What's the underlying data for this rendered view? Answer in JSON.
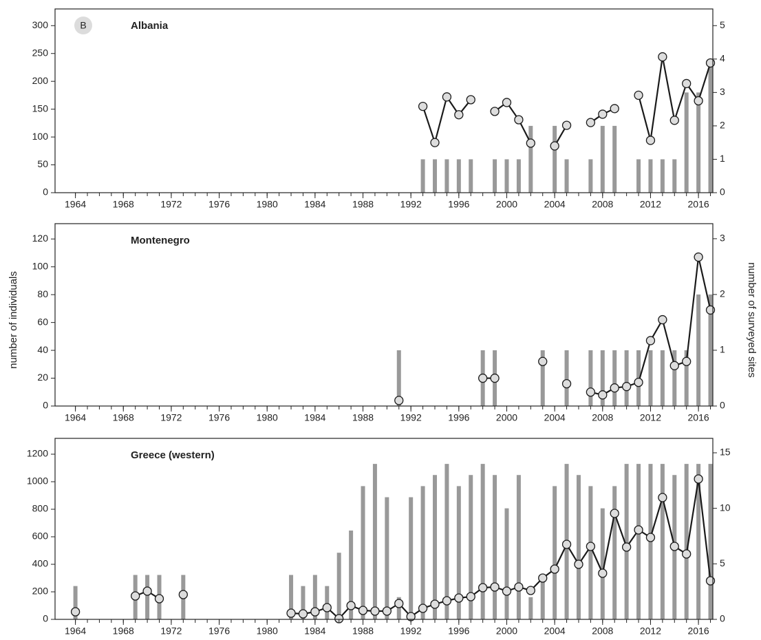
{
  "chart_data": [
    {
      "type": "combo",
      "title": "Albania",
      "panel_label": "B",
      "x": [
        1964,
        1965,
        1966,
        1967,
        1968,
        1969,
        1970,
        1971,
        1972,
        1973,
        1974,
        1975,
        1976,
        1977,
        1978,
        1979,
        1980,
        1981,
        1982,
        1983,
        1984,
        1985,
        1986,
        1987,
        1988,
        1989,
        1990,
        1991,
        1992,
        1993,
        1994,
        1995,
        1996,
        1997,
        1998,
        1999,
        2000,
        2001,
        2002,
        2003,
        2004,
        2005,
        2006,
        2007,
        2008,
        2009,
        2010,
        2011,
        2012,
        2013,
        2014,
        2015,
        2016,
        2017
      ],
      "xlim": [
        1962.3,
        2017.2
      ],
      "xticks": [
        1964,
        1968,
        1972,
        1976,
        1980,
        1984,
        1988,
        1992,
        1996,
        2000,
        2004,
        2008,
        2012,
        2016
      ],
      "ylim": [
        0,
        330
      ],
      "yticks": [
        0,
        50,
        100,
        150,
        200,
        250,
        300
      ],
      "y2lim": [
        0,
        5.5
      ],
      "y2ticks": [
        0,
        1,
        2,
        3,
        4,
        5
      ],
      "series": [
        {
          "type": "bar",
          "axis": "y2",
          "color": "#999999",
          "values": [
            null,
            null,
            null,
            null,
            null,
            null,
            null,
            null,
            null,
            null,
            null,
            null,
            null,
            null,
            null,
            null,
            null,
            null,
            null,
            null,
            null,
            null,
            null,
            null,
            null,
            null,
            null,
            null,
            null,
            1,
            1,
            1,
            1,
            1,
            null,
            1,
            1,
            1,
            2,
            null,
            2,
            1,
            null,
            1,
            2,
            2,
            null,
            1,
            1,
            1,
            1,
            3,
            3,
            4
          ]
        },
        {
          "type": "line",
          "color": "#1a1a1a",
          "marker_color": "#dddddd",
          "values": [
            null,
            null,
            null,
            null,
            null,
            null,
            null,
            null,
            null,
            null,
            null,
            null,
            null,
            null,
            null,
            null,
            null,
            null,
            null,
            null,
            null,
            null,
            null,
            null,
            null,
            null,
            null,
            null,
            null,
            155,
            90,
            172,
            140,
            167,
            null,
            146,
            162,
            131,
            89,
            null,
            84,
            121,
            null,
            126,
            141,
            151,
            null,
            175,
            94,
            244,
            130,
            196,
            165,
            233
          ]
        }
      ]
    },
    {
      "type": "combo",
      "title": "Montenegro",
      "ylabel": "number of individuals",
      "y2label": "number of surveyed sites",
      "x": [
        1964,
        1965,
        1966,
        1967,
        1968,
        1969,
        1970,
        1971,
        1972,
        1973,
        1974,
        1975,
        1976,
        1977,
        1978,
        1979,
        1980,
        1981,
        1982,
        1983,
        1984,
        1985,
        1986,
        1987,
        1988,
        1989,
        1990,
        1991,
        1992,
        1993,
        1994,
        1995,
        1996,
        1997,
        1998,
        1999,
        2000,
        2001,
        2002,
        2003,
        2004,
        2005,
        2006,
        2007,
        2008,
        2009,
        2010,
        2011,
        2012,
        2013,
        2014,
        2015,
        2016,
        2017
      ],
      "xlim": [
        1962.3,
        2017.2
      ],
      "xticks": [
        1964,
        1968,
        1972,
        1976,
        1980,
        1984,
        1988,
        1992,
        1996,
        2000,
        2004,
        2008,
        2012,
        2016
      ],
      "ylim": [
        0,
        131
      ],
      "yticks": [
        0,
        20,
        40,
        60,
        80,
        100,
        120
      ],
      "y2lim": [
        0,
        3.27
      ],
      "y2ticks": [
        0,
        1,
        2,
        3
      ],
      "series": [
        {
          "type": "bar",
          "axis": "y2",
          "color": "#999999",
          "values": [
            null,
            null,
            null,
            null,
            null,
            null,
            null,
            null,
            null,
            null,
            null,
            null,
            null,
            null,
            null,
            null,
            null,
            null,
            null,
            null,
            null,
            null,
            null,
            null,
            null,
            null,
            null,
            1,
            null,
            null,
            null,
            null,
            null,
            null,
            1,
            1,
            null,
            null,
            null,
            1,
            null,
            1,
            null,
            1,
            1,
            1,
            1,
            1,
            1,
            1,
            1,
            1,
            2,
            2
          ]
        },
        {
          "type": "line",
          "color": "#1a1a1a",
          "marker_color": "#dddddd",
          "values": [
            null,
            null,
            null,
            null,
            null,
            null,
            null,
            null,
            null,
            null,
            null,
            null,
            null,
            null,
            null,
            null,
            null,
            null,
            null,
            null,
            null,
            null,
            null,
            null,
            null,
            null,
            null,
            4,
            null,
            null,
            null,
            null,
            null,
            null,
            20,
            20,
            null,
            null,
            null,
            32,
            null,
            16,
            null,
            10,
            8,
            13,
            14,
            17,
            47,
            62,
            29,
            32,
            107,
            69
          ]
        }
      ]
    },
    {
      "type": "combo",
      "title": "Greece (western)",
      "x": [
        1964,
        1965,
        1966,
        1967,
        1968,
        1969,
        1970,
        1971,
        1972,
        1973,
        1974,
        1975,
        1976,
        1977,
        1978,
        1979,
        1980,
        1981,
        1982,
        1983,
        1984,
        1985,
        1986,
        1987,
        1988,
        1989,
        1990,
        1991,
        1992,
        1993,
        1994,
        1995,
        1996,
        1997,
        1998,
        1999,
        2000,
        2001,
        2002,
        2003,
        2004,
        2005,
        2006,
        2007,
        2008,
        2009,
        2010,
        2011,
        2012,
        2013,
        2014,
        2015,
        2016,
        2017
      ],
      "xlim": [
        1962.3,
        2017.2
      ],
      "xticks": [
        1964,
        1968,
        1972,
        1976,
        1980,
        1984,
        1988,
        1992,
        1996,
        2000,
        2004,
        2008,
        2012,
        2016
      ],
      "ylim": [
        0,
        1315
      ],
      "yticks": [
        0,
        200,
        400,
        600,
        800,
        1000,
        1200
      ],
      "y2lim": [
        0,
        16.3
      ],
      "y2ticks": [
        0,
        5,
        10,
        15
      ],
      "series": [
        {
          "type": "bar",
          "axis": "y2",
          "color": "#999999",
          "values": [
            3,
            null,
            null,
            null,
            null,
            4,
            4,
            4,
            null,
            4,
            null,
            null,
            null,
            null,
            null,
            null,
            null,
            null,
            4,
            3,
            4,
            3,
            6,
            8,
            12,
            14,
            11,
            2,
            11,
            12,
            13,
            14,
            12,
            13,
            14,
            13,
            10,
            13,
            2,
            4,
            12,
            14,
            13,
            12,
            10,
            12,
            14,
            14,
            14,
            14,
            13,
            14,
            14,
            14
          ]
        },
        {
          "type": "line",
          "color": "#1a1a1a",
          "marker_color": "#dddddd",
          "values": [
            55,
            null,
            null,
            null,
            null,
            170,
            205,
            150,
            null,
            180,
            null,
            null,
            null,
            null,
            null,
            null,
            null,
            null,
            45,
            40,
            55,
            85,
            5,
            100,
            65,
            60,
            60,
            115,
            20,
            80,
            110,
            135,
            155,
            165,
            230,
            235,
            205,
            235,
            210,
            300,
            365,
            545,
            400,
            530,
            335,
            770,
            525,
            650,
            595,
            885,
            530,
            475,
            1020,
            280
          ]
        }
      ]
    }
  ]
}
